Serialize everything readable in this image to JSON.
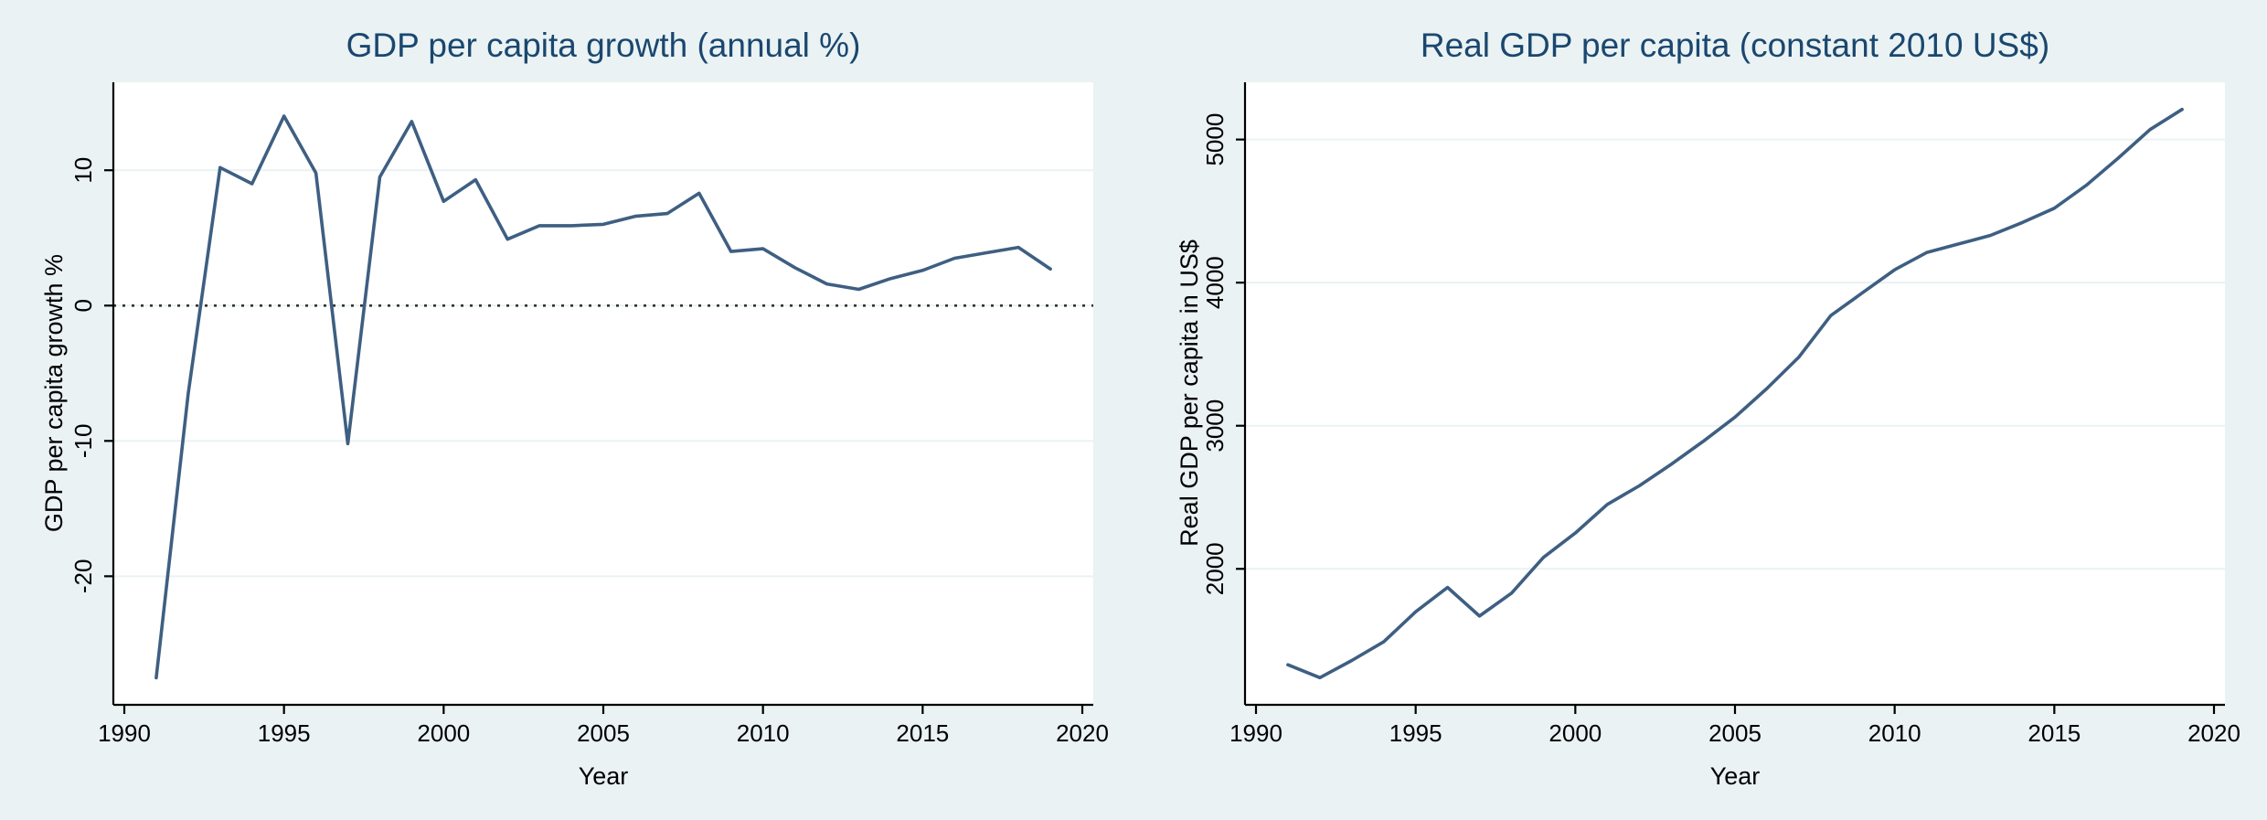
{
  "colors": {
    "background": "#eaf2f3",
    "plot_area": "#ffffff",
    "series": "#3e5f82",
    "title": "#1a476f",
    "grid": "#eaf2f3"
  },
  "chart_data": [
    {
      "type": "line",
      "title": "GDP per capita growth (annual %)",
      "xlabel": "Year",
      "ylabel": "GDP per capita growth %",
      "xlim": [
        1990,
        2020
      ],
      "ylim": [
        -29.5,
        16.5
      ],
      "xticks": [
        1990,
        1995,
        2000,
        2005,
        2010,
        2015,
        2020
      ],
      "yticks": [
        -20,
        -10,
        0,
        10
      ],
      "grid": true,
      "reference_line": {
        "y": 0,
        "style": "dotted"
      },
      "series": [
        {
          "x": [
            1991,
            1992,
            1993,
            1994,
            1995,
            1996,
            1997,
            1998,
            1999,
            2000,
            2001,
            2002,
            2003,
            2004,
            2005,
            2006,
            2007,
            2008,
            2009,
            2010,
            2011,
            2012,
            2013,
            2014,
            2015,
            2016,
            2017,
            2018,
            2019
          ],
          "values": [
            -27.5,
            -6.5,
            10.2,
            9.0,
            14.0,
            9.8,
            -10.2,
            9.5,
            13.6,
            7.7,
            9.3,
            4.9,
            5.9,
            5.9,
            6.0,
            6.6,
            6.8,
            8.3,
            4.0,
            4.2,
            2.8,
            1.6,
            1.2,
            2.0,
            2.6,
            3.5,
            3.9,
            4.3,
            2.7
          ]
        }
      ]
    },
    {
      "type": "line",
      "title": "Real GDP per capita (constant 2010 US$)",
      "xlabel": "Year",
      "ylabel": "Real GDP per capita in US$",
      "xlim": [
        1990,
        2020
      ],
      "ylim": [
        1050,
        5400
      ],
      "xticks": [
        1990,
        1995,
        2000,
        2005,
        2010,
        2015,
        2020
      ],
      "yticks": [
        2000,
        3000,
        4000,
        5000
      ],
      "grid": true,
      "series": [
        {
          "x": [
            1991,
            1992,
            1993,
            1994,
            1995,
            1996,
            1997,
            1998,
            1999,
            2000,
            2001,
            2002,
            2003,
            2004,
            2005,
            2006,
            2007,
            2008,
            2009,
            2010,
            2011,
            2012,
            2013,
            2014,
            2015,
            2016,
            2017,
            2018,
            2019
          ],
          "values": [
            1330,
            1240,
            1360,
            1490,
            1700,
            1870,
            1670,
            1830,
            2080,
            2250,
            2450,
            2580,
            2730,
            2890,
            3060,
            3260,
            3480,
            3770,
            3930,
            4090,
            4210,
            4270,
            4330,
            4420,
            4520,
            4680,
            4870,
            5070,
            5210
          ]
        }
      ]
    }
  ]
}
